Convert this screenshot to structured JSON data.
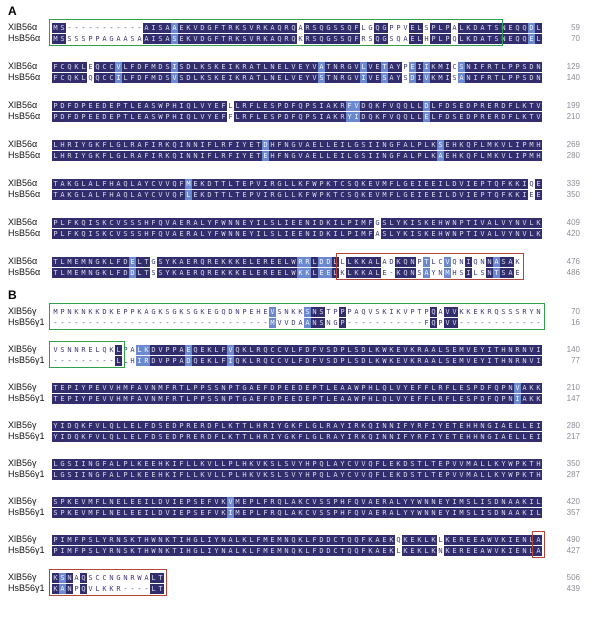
{
  "figure_type": "protein-sequence-alignment",
  "colors": {
    "match_bg": "#322e6d",
    "similar_bg": "#6b89cf",
    "plain_text": "#3d3a78",
    "number_text": "#8d8d99",
    "box_green": "#2fa04c",
    "box_red": "#b2453a"
  },
  "similar_groups": [
    "ILMV",
    "FWY",
    "KRH",
    "DE",
    "STA",
    "NQ"
  ],
  "panels": [
    {
      "label": "A",
      "pairs": [
        {
          "boxes": [
            {
              "color": "green",
              "from": 1,
              "to": 64
            }
          ],
          "rows": [
            {
              "label": "XlB56α",
              "seq": "MS-----------AISAAEKVDGFTRKSVRKAQRQARSQGSSQFLGQGPPVELSPLPALKDATSNEQQDL",
              "num": "59"
            },
            {
              "label": "HsB56α",
              "seq": "MSSSSPPAGAASAAISASEKVDGFTRKSVRKAQRQKRSQGSSQFRSQGSQAELHPLPQLKDATSNEQQEL",
              "num": "70"
            }
          ]
        },
        {
          "rows": [
            {
              "label": "XlB56α",
              "seq": "FCQKLEQCCVLFDFMDSISDLKSKEIKRATLNELVEYVATNRGVLVETAYPEIIKMICSNIFRTLPPSDN",
              "num": "129"
            },
            {
              "label": "HsB56α",
              "seq": "FCQKLQQCCILFDFMDSVSDLKSKEIKRATLNELVEYVSTNRGVIVESAYSDIVKMISANIFRTLPPSDN",
              "num": "140"
            }
          ]
        },
        {
          "rows": [
            {
              "label": "XlB56α",
              "seq": "PDFDPEEDEPTLEASWPHIQLVYEFLLRFLESPDFQPSIAKRFVDQKFVQQLLDLFDSEDPRERDFLKTV",
              "num": "199"
            },
            {
              "label": "HsB56α",
              "seq": "PDFDPEEDEPTLEASWPHIQLVYEFFLRFLESPDFQPSIAKRYIDQKFVQQLLELFDSEDPRERDFLKTV",
              "num": "210"
            }
          ]
        },
        {
          "rows": [
            {
              "label": "XlB56α",
              "seq": "LHRIYGKFLGLRAFIRKQINNIFLRFIYETDHFNGVAELLEILGSIINGFALPLKSEHKQFLMKVLIPMH",
              "num": "269"
            },
            {
              "label": "HsB56α",
              "seq": "LHRIYGKFLGLRAFIRKQINNIFLRFIYETEHFNGVAELLEILGSIINGFALPLKAEHKQFLMKVLIPMH",
              "num": "280"
            }
          ]
        },
        {
          "rows": [
            {
              "label": "XlB56α",
              "seq": "TAKGLALFHAQLAYCVVQFMEKDTTLTEPVIRGLLKFWPKTCSQKEVMFLGEIEEILDVIEPTQFKKIQE",
              "num": "339"
            },
            {
              "label": "HsB56α",
              "seq": "TAKGLALFHAQLAYCVVQFLEKDTTLTEPVIRGLLKFWPKTCSQKEVMFLGEIEEILDVIEPTQFKKIEE",
              "num": "350"
            }
          ]
        },
        {
          "rows": [
            {
              "label": "XlB56α",
              "seq": "PLFKQISKCVSSSHFQVAERALYFWNNEYILSLIEENIDKILPIMFGSLYKISKEHWNPTIVALVYNVLK",
              "num": "409"
            },
            {
              "label": "HsB56α",
              "seq": "PLFKQISKCVSSSHFQVAERALYFWNNEYILSLIEENIDKILPIMFASLYKISKEHWNPTIVALVYNVLK",
              "num": "420"
            }
          ]
        },
        {
          "boxes": [
            {
              "color": "red",
              "from": 42,
              "to": 67
            }
          ],
          "rows": [
            {
              "label": "XlB56α",
              "seq": "TLMEMNGKLFDELTGSYKAERQREKKKELEREELWRRLDDLLLKKALADKQNPTLCVQNIQNNASAK",
              "num": "476"
            },
            {
              "label": "HsB56α",
              "seq": "TLMEMNGKLFDDLTSSYKAERQREKKKELEREELWKKLEELKLKKALE-KQNSAYNMHSILSNTSAE",
              "num": "486"
            }
          ]
        }
      ]
    },
    {
      "label": "B",
      "pairs": [
        {
          "boxes": [
            {
              "color": "green",
              "from": 1,
              "to": 70
            }
          ],
          "rows": [
            {
              "label": "XlB56γ",
              "seq": "MPNKNKKDKEPPKAGKSGKSGKEGQDNPEHEVSNKKSNSTPPPAQVSKIKVPTPQAVVKKEKRQSSSRYN",
              "num": "70"
            },
            {
              "label": "HsB56γ1",
              "seq": "-------------------------------MVVDAANSNGP-----------FQPVV------------",
              "num": "16"
            }
          ]
        },
        {
          "boxes": [
            {
              "color": "green",
              "from": 1,
              "to": 10
            }
          ],
          "rows": [
            {
              "label": "XlB56γ",
              "seq": "VSNNRELQKLPALKDVPPAEQEKLFVQKLRQCCVLFDFVSDPLSDLKWKEVKRAALSEMVEYITHNRNVI",
              "num": "140"
            },
            {
              "label": "HsB56γ1",
              "seq": "---------LLHIRDVPPADQEKLFIQKLRQCCVLFDFVSDPLSDLKWKEVKRAALSEMVEYITHNRNVI",
              "num": "77"
            }
          ]
        },
        {
          "rows": [
            {
              "label": "XlB56γ",
              "seq": "TEPIYPEVVHMFAVNMFRTLPPSSNPTGAEFDPEEDEPTLEAAWPHLQLVYEFFLRFLESPDFQPNVAKK",
              "num": "210"
            },
            {
              "label": "HsB56γ1",
              "seq": "TEPIYPEVVHMFAVNMFRTLPPSSNPTGAEFDPEEDEPTLEAAWPHLQLVYEFFLRFLESPDFQPNIAKK",
              "num": "147"
            }
          ]
        },
        {
          "rows": [
            {
              "label": "XlB56γ",
              "seq": "YIDQKFVLQLLELFDSEDPRERDFLKTTLHRIYGKFLGLRAYIRKQINNIFYRFIYETEHHNGIAELLEI",
              "num": "280"
            },
            {
              "label": "HsB56γ1",
              "seq": "YIDQKFVLQLLELFDSEDPRERDFLKTTLHRIYGKFLGLRAYIRKQINNIFYRFIYETEHHNGIAELLEI",
              "num": "217"
            }
          ]
        },
        {
          "rows": [
            {
              "label": "XlB56γ",
              "seq": "LGSIINGFALPLKEEHKIFLLKVLLPLHKVKSLSVYHPQLAYCVVQFLEKDSTLTEPVVMALLKYWPKTH",
              "num": "350"
            },
            {
              "label": "HsB56γ1",
              "seq": "LGSIINGFALPLKEEHKIFLLKVLLPLHKVKSLSVYHPQLAYCVVQFLEKDSTLTEPVVMALLKYWPKTH",
              "num": "287"
            }
          ]
        },
        {
          "rows": [
            {
              "label": "XlB56γ",
              "seq": "SPKEVMFLNELEEILDVIEPSEFVKVMEPLFRQLAKCVSSPHFQVAERALYYWNNEYIMSLISDNAAKIL",
              "num": "420"
            },
            {
              "label": "HsB56γ1",
              "seq": "SPKEVMFLNELEEILDVIEPSEFVKIMEPLFRQLAKCVSSPHFQVAERALYYWNNEYIMSLISDNAAKIL",
              "num": "357"
            }
          ]
        },
        {
          "boxes": [
            {
              "color": "red",
              "from": 70,
              "to": 70
            }
          ],
          "rows": [
            {
              "label": "XlB56γ",
              "seq": "PIMFPSLYRNSKTHWNKTIHGLIYNALKLFMEMNQKLFDDCTQQFKAEKQKEKLKLKEREEAWVKIENLA",
              "num": "490"
            },
            {
              "label": "HsB56γ1",
              "seq": "PIMFPSLYRNSKTHWNKTIHGLIYNALKLFMEMNQKLFDDCTQQFKAEKLKEKLKNKEREEAWVKIENLA",
              "num": "427"
            }
          ]
        },
        {
          "boxes": [
            {
              "color": "red",
              "from": 1,
              "to": 16
            }
          ],
          "rows": [
            {
              "label": "XlB56γ",
              "seq": "KSNAQSCCNGNRWALT",
              "num": "506"
            },
            {
              "label": "HsB56γ1",
              "seq": "KANPQVLKKR----LT",
              "num": "439"
            }
          ]
        }
      ]
    }
  ]
}
